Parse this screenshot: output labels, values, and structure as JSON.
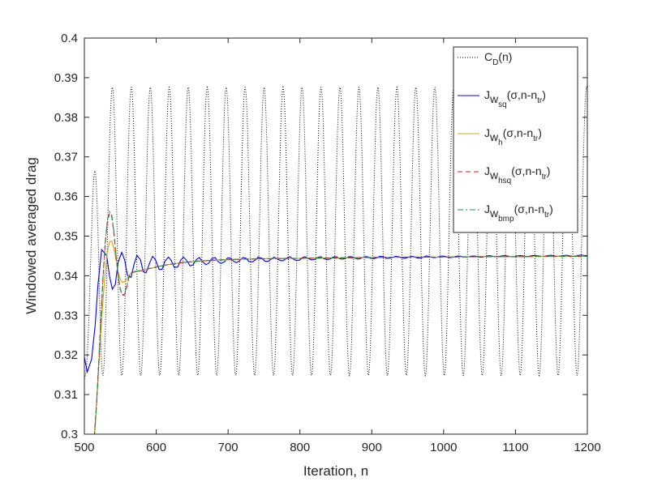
{
  "chart_data": {
    "type": "line",
    "title": "",
    "xlabel": "Iteration, n",
    "ylabel": "Windowed averaged drag",
    "xlim": [
      500,
      1200
    ],
    "ylim": [
      0.3,
      0.4
    ],
    "xticks": [
      "500",
      "600",
      "700",
      "800",
      "900",
      "1000",
      "1100",
      "1200"
    ],
    "yticks": [
      "0.3",
      "0.31",
      "0.32",
      "0.33",
      "0.34",
      "0.35",
      "0.36",
      "0.37",
      "0.38",
      "0.39",
      "0.4"
    ],
    "grid": false,
    "legend_position": "top-right",
    "series": [
      {
        "key": "cd",
        "name": "C_D(n)",
        "legend": {
          "main": "C",
          "sub": "D",
          "rest": "(n)"
        },
        "color": "#000000",
        "style": "dotted",
        "model": {
          "period": 26.4,
          "phase_at_500": 3.3,
          "min": 0.3148,
          "max": 0.3876,
          "start_min": 0.314,
          "start_max": 0.3215
        }
      },
      {
        "key": "jsq",
        "name": "J_w_sq(σ,n-n_tr)",
        "legend": {
          "main": "J",
          "sub": "w",
          "subsub": "sq",
          "rest": "(σ,n-n",
          "trail_sub": "tr",
          "close": ")"
        },
        "color": "#0000ff",
        "style": "solid",
        "x": [
          500,
          504,
          510,
          515,
          519,
          524,
          531,
          535,
          539,
          543,
          547,
          552,
          556,
          560,
          565,
          569,
          573,
          578,
          582,
          586,
          591,
          595,
          599,
          604,
          608,
          612,
          617,
          621,
          625,
          630,
          634,
          638,
          643,
          647,
          651,
          656,
          660,
          664,
          669,
          673,
          677,
          682,
          686,
          690,
          695,
          699,
          703,
          708,
          712,
          716,
          721,
          725,
          729,
          734,
          738,
          742,
          747,
          751,
          755,
          760,
          764,
          768,
          773,
          777,
          781,
          786,
          790,
          794,
          799,
          803,
          807,
          812,
          816,
          820,
          825,
          829,
          833,
          838,
          842,
          846,
          851,
          855,
          859,
          864,
          868,
          872,
          877,
          881,
          885,
          890,
          894,
          898,
          903,
          907,
          911,
          916,
          920,
          924,
          929,
          933,
          937,
          942,
          946,
          950,
          955,
          959,
          963,
          968,
          972,
          976,
          981,
          985,
          989,
          994,
          998,
          1002,
          1007,
          1011,
          1015,
          1020,
          1024,
          1028,
          1033,
          1037,
          1041,
          1046,
          1050,
          1054,
          1059,
          1063,
          1067,
          1072,
          1076,
          1080,
          1085,
          1089,
          1093,
          1098,
          1102,
          1106,
          1111,
          1115,
          1119,
          1124,
          1128,
          1132,
          1137,
          1141,
          1145,
          1150,
          1154,
          1158,
          1163,
          1167,
          1171,
          1176,
          1180,
          1184,
          1189,
          1193,
          1197,
          1200
        ],
        "y": [
          0.3195,
          0.3157,
          0.3189,
          0.3275,
          0.3378,
          0.3466,
          0.3451,
          0.3399,
          0.3366,
          0.3378,
          0.3434,
          0.3459,
          0.344,
          0.3401,
          0.3396,
          0.3428,
          0.3451,
          0.3441,
          0.341,
          0.3408,
          0.3433,
          0.3449,
          0.344,
          0.3416,
          0.3416,
          0.3436,
          0.3447,
          0.3438,
          0.3421,
          0.3422,
          0.3439,
          0.3447,
          0.3437,
          0.3425,
          0.3427,
          0.3441,
          0.3446,
          0.3436,
          0.3428,
          0.3431,
          0.3443,
          0.3446,
          0.3436,
          0.3431,
          0.3435,
          0.3445,
          0.3445,
          0.3436,
          0.3433,
          0.3438,
          0.3446,
          0.3444,
          0.3436,
          0.3435,
          0.344,
          0.3447,
          0.3444,
          0.3437,
          0.3436,
          0.3442,
          0.3447,
          0.3443,
          0.3438,
          0.3438,
          0.3444,
          0.3448,
          0.3443,
          0.3439,
          0.3439,
          0.3445,
          0.3448,
          0.3443,
          0.344,
          0.3441,
          0.3446,
          0.3448,
          0.3443,
          0.3441,
          0.3442,
          0.3447,
          0.3448,
          0.3443,
          0.3442,
          0.3444,
          0.3448,
          0.3448,
          0.3444,
          0.3442,
          0.3444,
          0.3448,
          0.3448,
          0.3444,
          0.3443,
          0.3445,
          0.3449,
          0.3448,
          0.3444,
          0.3444,
          0.3446,
          0.3449,
          0.3448,
          0.3445,
          0.3444,
          0.3446,
          0.3449,
          0.3448,
          0.3445,
          0.3445,
          0.3447,
          0.345,
          0.3448,
          0.3446,
          0.3446,
          0.3448,
          0.345,
          0.3449,
          0.3446,
          0.3446,
          0.3448,
          0.345,
          0.3449,
          0.3447,
          0.3447,
          0.3449,
          0.345,
          0.3449,
          0.3447,
          0.3447,
          0.3449,
          0.3451,
          0.345,
          0.3448,
          0.3448,
          0.345,
          0.3451,
          0.345,
          0.3448,
          0.3448,
          0.345,
          0.3451,
          0.345,
          0.3448,
          0.3449,
          0.3451,
          0.3451,
          0.345,
          0.3449,
          0.3449,
          0.3451,
          0.3452,
          0.345,
          0.3449,
          0.345,
          0.3451,
          0.3452,
          0.345,
          0.3449,
          0.345,
          0.3452,
          0.3452,
          0.3451,
          0.3451
        ]
      },
      {
        "key": "jh",
        "name": "J_w_h(σ,n-n_tr)",
        "legend": {
          "main": "J",
          "sub": "w",
          "subsub": "h",
          "rest": "(σ,n-n",
          "trail_sub": "tr",
          "close": ")"
        },
        "color": "#d4a017",
        "style": "solid",
        "x": [
          514,
          517,
          520,
          523,
          526,
          529,
          532,
          535,
          538,
          541,
          544,
          547,
          550,
          553,
          556,
          560,
          564,
          568,
          572,
          576,
          580,
          585,
          590,
          600,
          610,
          620,
          640,
          660,
          680,
          700,
          750,
          800,
          850,
          900,
          950,
          1000,
          1050,
          1100,
          1150,
          1200
        ],
        "y": [
          0.3,
          0.308,
          0.317,
          0.326,
          0.334,
          0.341,
          0.346,
          0.3485,
          0.3488,
          0.347,
          0.344,
          0.341,
          0.339,
          0.3383,
          0.3385,
          0.3395,
          0.3405,
          0.3408,
          0.341,
          0.3412,
          0.3413,
          0.3415,
          0.3418,
          0.3422,
          0.3426,
          0.3429,
          0.3434,
          0.3437,
          0.3439,
          0.3441,
          0.3443,
          0.3444,
          0.3445,
          0.3446,
          0.3447,
          0.3447,
          0.3448,
          0.3448,
          0.3449,
          0.3449
        ]
      },
      {
        "key": "jhsq",
        "name": "J_w_hsq(σ,n-n_tr)",
        "legend": {
          "main": "J",
          "sub": "w",
          "subsub": "hsq",
          "rest": "(σ,n-n",
          "trail_sub": "tr",
          "close": ")"
        },
        "color": "#e8101a",
        "style": "dashed",
        "x": [
          514,
          517,
          520,
          523,
          526,
          529,
          532,
          535,
          538,
          541,
          544,
          547,
          550,
          553,
          556,
          559,
          562,
          566,
          570,
          575,
          580,
          590,
          600,
          610,
          620,
          640,
          660,
          680,
          700,
          750,
          800,
          850,
          900,
          950,
          1000,
          1050,
          1100,
          1150,
          1200
        ],
        "y": [
          0.2995,
          0.308,
          0.318,
          0.329,
          0.3395,
          0.348,
          0.3535,
          0.3558,
          0.355,
          0.351,
          0.345,
          0.34,
          0.3365,
          0.335,
          0.3352,
          0.3372,
          0.3395,
          0.3408,
          0.341,
          0.3411,
          0.3413,
          0.3418,
          0.3422,
          0.3426,
          0.3429,
          0.3434,
          0.3437,
          0.3439,
          0.3441,
          0.3443,
          0.3444,
          0.3445,
          0.3446,
          0.3447,
          0.3447,
          0.3448,
          0.3448,
          0.3449,
          0.3449
        ]
      },
      {
        "key": "jbmp",
        "name": "J_w_bmp(σ,n-n_tr)",
        "legend": {
          "main": "J",
          "sub": "w",
          "subsub": "bmp",
          "rest": "(σ,n-n",
          "trail_sub": "tr",
          "close": ")"
        },
        "color": "#1a8f4a",
        "style": "dashdot",
        "x": [
          514,
          517,
          520,
          523,
          526,
          529,
          532,
          535,
          538,
          541,
          544,
          547,
          550,
          553,
          556,
          559,
          562,
          566,
          570,
          575,
          580,
          590,
          600,
          610,
          620,
          640,
          660,
          680,
          700,
          750,
          800,
          850,
          900,
          950,
          1000,
          1050,
          1100,
          1150,
          1200
        ],
        "y": [
          0.299,
          0.3078,
          0.318,
          0.3292,
          0.3398,
          0.3484,
          0.354,
          0.3562,
          0.3553,
          0.3513,
          0.3452,
          0.3401,
          0.3366,
          0.3352,
          0.3355,
          0.3376,
          0.3398,
          0.3409,
          0.3411,
          0.3412,
          0.3414,
          0.3418,
          0.3422,
          0.3426,
          0.3429,
          0.3434,
          0.3437,
          0.3439,
          0.3441,
          0.3443,
          0.3444,
          0.3445,
          0.3446,
          0.3447,
          0.3447,
          0.3448,
          0.3448,
          0.3449,
          0.3449
        ]
      }
    ]
  }
}
